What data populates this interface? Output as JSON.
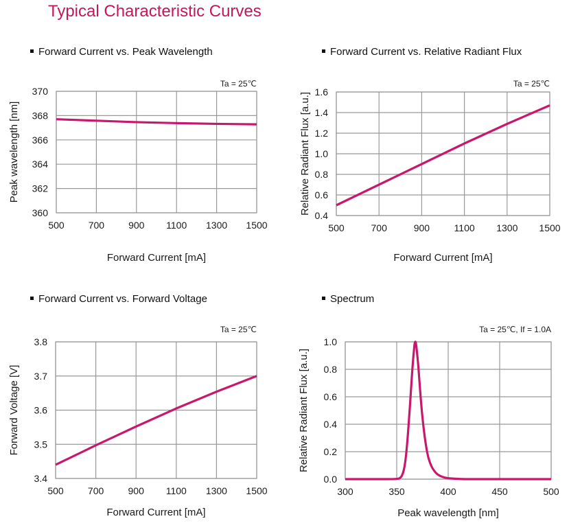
{
  "page": {
    "title": "Typical Characteristic Curves",
    "accent_color": "#c2185b",
    "curve_color": "#c8186e",
    "grid_color": "#999999"
  },
  "chart_data": [
    {
      "id": "wavelength",
      "section_title": "Forward Current vs. Peak Wavelength",
      "type": "line",
      "condition": "Ta = 25℃",
      "xlabel": "Forward Current [mA]",
      "ylabel": "Peak wavelength [nm]",
      "xlim": [
        500,
        1500
      ],
      "ylim": [
        360,
        370
      ],
      "xticks": [
        "500",
        "700",
        "900",
        "1100",
        "1300",
        "1500"
      ],
      "yticks": [
        "360",
        "362",
        "364",
        "366",
        "368",
        "370"
      ],
      "grid": true,
      "series": [
        {
          "name": "Peak wavelength",
          "x": [
            500,
            700,
            900,
            1100,
            1300,
            1500
          ],
          "y": [
            367.7,
            367.58,
            367.46,
            367.38,
            367.32,
            367.28
          ]
        }
      ]
    },
    {
      "id": "flux",
      "section_title": "Forward Current vs. Relative Radiant Flux",
      "type": "line",
      "condition": "Ta = 25℃",
      "xlabel": "Forward Current [mA]",
      "ylabel": "Relative Radiant Flux [a.u.]",
      "xlim": [
        500,
        1500
      ],
      "ylim": [
        0.4,
        1.6
      ],
      "xticks": [
        "500",
        "700",
        "900",
        "1100",
        "1300",
        "1500"
      ],
      "yticks": [
        "0.4",
        "0.6",
        "0.8",
        "1.0",
        "1.2",
        "1.4",
        "1.6"
      ],
      "grid": true,
      "series": [
        {
          "name": "Relative radiant flux",
          "x": [
            500,
            700,
            900,
            1100,
            1300,
            1500
          ],
          "y": [
            0.5,
            0.7,
            0.9,
            1.1,
            1.29,
            1.47
          ]
        }
      ]
    },
    {
      "id": "voltage",
      "section_title": "Forward Current vs. Forward Voltage",
      "type": "line",
      "condition": "Ta = 25℃",
      "xlabel": "Forward Current [mA]",
      "ylabel": "Forward Voltage [V]",
      "xlim": [
        500,
        1500
      ],
      "ylim": [
        3.4,
        3.8
      ],
      "xticks": [
        "500",
        "700",
        "900",
        "1100",
        "1300",
        "1500"
      ],
      "yticks": [
        "3.4",
        "3.5",
        "3.6",
        "3.7",
        "3.8"
      ],
      "grid": true,
      "series": [
        {
          "name": "Forward voltage",
          "x": [
            500,
            700,
            900,
            1100,
            1300,
            1500
          ],
          "y": [
            3.44,
            3.497,
            3.552,
            3.605,
            3.654,
            3.7
          ]
        }
      ]
    },
    {
      "id": "spectrum",
      "section_title": "Spectrum",
      "type": "line",
      "condition": "Ta = 25℃,  If = 1.0A",
      "xlabel": "Peak wavelength [nm]",
      "ylabel": "Relative Radiant Flux [a.u.]",
      "xlim": [
        300,
        500
      ],
      "ylim": [
        0.0,
        1.0
      ],
      "xticks": [
        "300",
        "350",
        "400",
        "450",
        "500"
      ],
      "yticks": [
        "0.0",
        "0.2",
        "0.4",
        "0.6",
        "0.8",
        "1.0"
      ],
      "grid": true,
      "series": [
        {
          "name": "Spectrum",
          "x": [
            300,
            340,
            350,
            353,
            355,
            357,
            359,
            361,
            363,
            365,
            367,
            368,
            369,
            371,
            373,
            375,
            377,
            379,
            381,
            384,
            387,
            390,
            395,
            400,
            410,
            420,
            450,
            500
          ],
          "y": [
            0.0,
            0.0,
            0.002,
            0.008,
            0.025,
            0.07,
            0.17,
            0.34,
            0.55,
            0.78,
            0.96,
            1.0,
            0.97,
            0.82,
            0.62,
            0.45,
            0.32,
            0.22,
            0.15,
            0.09,
            0.055,
            0.033,
            0.015,
            0.007,
            0.002,
            0.0,
            0.0,
            0.0
          ]
        }
      ]
    }
  ]
}
